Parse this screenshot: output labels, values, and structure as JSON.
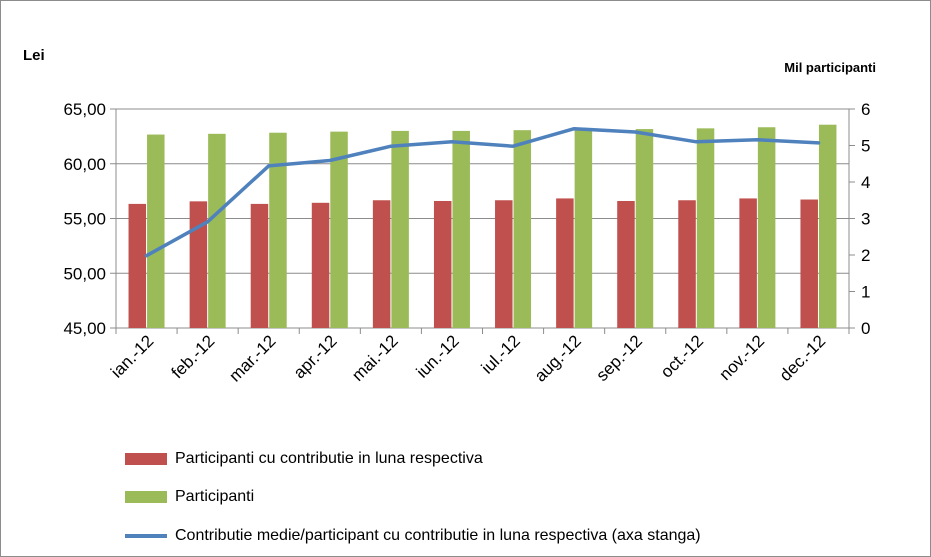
{
  "chart_data": {
    "type": "bar",
    "title": "",
    "ylabel": "Lei",
    "y2label": "Mil participanti",
    "ylim": [
      45,
      65
    ],
    "y2lim": [
      0,
      6
    ],
    "yticks": [
      "45,00",
      "50,00",
      "55,00",
      "60,00",
      "65,00"
    ],
    "y2ticks": [
      "0",
      "1",
      "2",
      "3",
      "4",
      "5",
      "6"
    ],
    "categories": [
      "ian.-12",
      "feb.-12",
      "mar.-12",
      "apr.-12",
      "mai.-12",
      "iun.-12",
      "iul.-12",
      "aug.-12",
      "sep.-12",
      "oct.-12",
      "nov.-12",
      "dec.-12"
    ],
    "series": [
      {
        "name": "Participanti cu contributie in luna respectiva",
        "type": "bar",
        "axis": "right",
        "color": "#c0504d",
        "values": [
          3.4,
          3.47,
          3.4,
          3.43,
          3.5,
          3.48,
          3.5,
          3.55,
          3.48,
          3.5,
          3.55,
          3.52
        ]
      },
      {
        "name": "Participanti",
        "type": "bar",
        "axis": "right",
        "color": "#9bbb59",
        "values": [
          5.3,
          5.32,
          5.35,
          5.38,
          5.4,
          5.4,
          5.42,
          5.42,
          5.45,
          5.47,
          5.5,
          5.57
        ]
      },
      {
        "name": "Contributie medie/participant cu contributie in luna respectiva (axa stanga)",
        "type": "line",
        "axis": "left",
        "color": "#4f81bd",
        "values": [
          51.6,
          54.7,
          59.8,
          60.3,
          61.6,
          62.0,
          61.6,
          63.2,
          62.9,
          62.0,
          62.2,
          61.9
        ]
      }
    ],
    "legend_position": "bottom",
    "grid": true
  }
}
